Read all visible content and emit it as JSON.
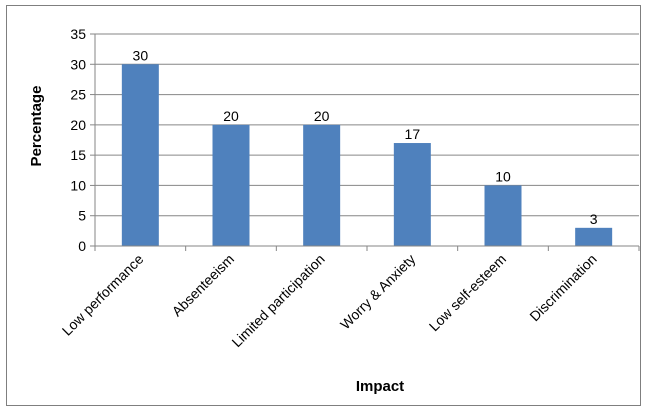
{
  "chart_data": {
    "type": "bar",
    "title": "",
    "xlabel": "Impact",
    "ylabel": "Percentage",
    "categories": [
      "Low performance",
      "Absenteeism",
      "Limited participation",
      "Worry & Anxiety",
      "Low self-esteem",
      "Discrimination"
    ],
    "series": [
      {
        "values": [
          30,
          20,
          20,
          17,
          10,
          3
        ],
        "color": "#4f81bd"
      }
    ],
    "data_labels": [
      "30",
      "20",
      "20",
      "17",
      "10",
      "3"
    ],
    "ylim": [
      0,
      35
    ],
    "yticks": [
      0,
      5,
      10,
      15,
      20,
      25,
      30,
      35
    ],
    "grid": true,
    "legend": "none"
  }
}
